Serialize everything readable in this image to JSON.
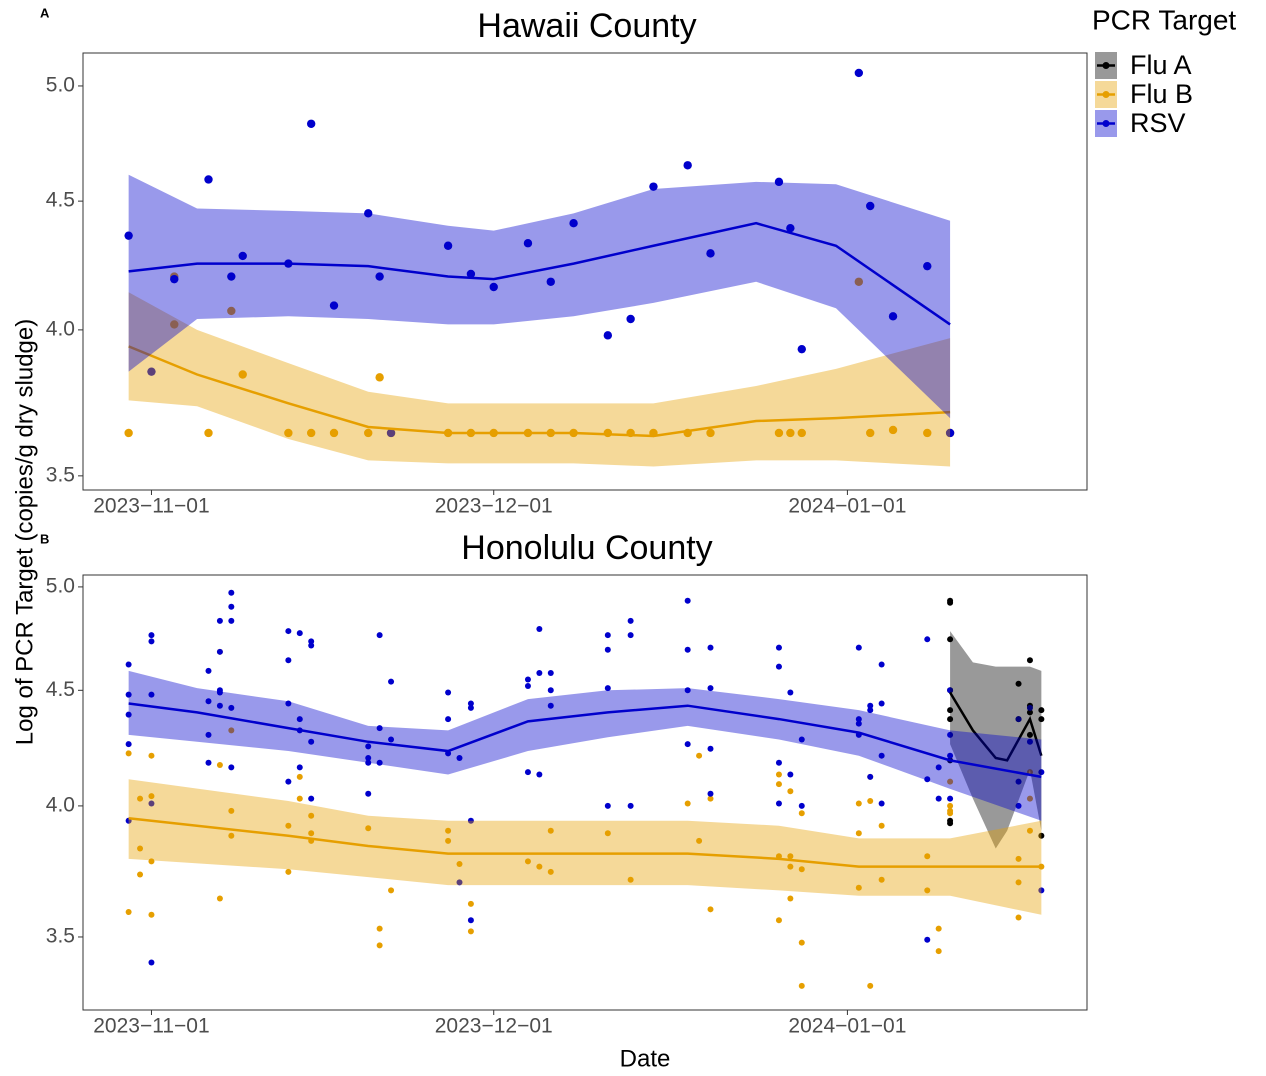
{
  "x_label": "Date",
  "y_label": "Log of PCR Target (copies/g dry sludge)",
  "legend": {
    "title": "PCR Target",
    "position": "right"
  },
  "chart_data": [
    {
      "type": "scatter",
      "tag": "A",
      "title": "Hawaii County",
      "ylog": true,
      "xlim": [
        "2023-10-26",
        "2024-01-22"
      ],
      "xticks": [
        {
          "value": "2023-11-01",
          "label": "2023−11−01"
        },
        {
          "value": "2023-12-01",
          "label": "2023−12−01"
        },
        {
          "value": "2024-01-01",
          "label": "2024−01−01"
        }
      ],
      "ylim": [
        3.455,
        5.153
      ],
      "yticks": [
        3.5,
        {
          "value": 4,
          "label": "4.0"
        },
        4.5,
        {
          "value": 5,
          "label": "5.0"
        }
      ],
      "series": [
        {
          "name": "Flu B",
          "color": "#E69F00",
          "x": [
            "2023-10-30",
            "2023-11-03",
            "2023-11-03",
            "2023-11-06",
            "2023-11-08",
            "2023-11-09",
            "2023-11-13",
            "2023-11-15",
            "2023-11-17",
            "2023-11-20",
            "2023-11-21",
            "2023-11-22",
            "2023-11-27",
            "2023-11-29",
            "2023-12-01",
            "2023-12-04",
            "2023-12-06",
            "2023-12-08",
            "2023-12-11",
            "2023-12-13",
            "2023-12-15",
            "2023-12-18",
            "2023-12-20",
            "2023-12-26",
            "2023-12-27",
            "2023-12-28",
            "2024-01-02",
            "2024-01-03",
            "2024-01-05",
            "2024-01-08",
            "2024-01-10"
          ],
          "values": [
            3.64,
            4.2,
            4.02,
            3.64,
            4.07,
            3.84,
            3.64,
            3.64,
            3.64,
            3.64,
            3.83,
            3.64,
            3.64,
            3.64,
            3.64,
            3.64,
            3.64,
            3.64,
            3.64,
            3.64,
            3.64,
            3.64,
            3.64,
            3.64,
            3.64,
            3.64,
            4.18,
            3.64,
            3.65,
            3.64,
            3.64
          ],
          "fit": {
            "x": [
              "2023-10-30",
              "2023-11-05",
              "2023-11-13",
              "2023-11-20",
              "2023-11-27",
              "2023-12-08",
              "2023-12-15",
              "2023-12-24",
              "2023-12-31",
              "2024-01-10"
            ],
            "values": [
              3.94,
              3.84,
              3.74,
              3.66,
              3.64,
              3.64,
              3.63,
              3.68,
              3.69,
              3.71
            ],
            "upper": [
              4.14,
              4.0,
              3.88,
              3.78,
              3.74,
              3.74,
              3.74,
              3.8,
              3.86,
              3.97
            ],
            "lower": [
              3.75,
              3.73,
              3.62,
              3.55,
              3.54,
              3.54,
              3.53,
              3.55,
              3.55,
              3.53
            ]
          }
        },
        {
          "name": "RSV",
          "color": "#0000CC",
          "x": [
            "2023-10-30",
            "2023-11-01",
            "2023-11-03",
            "2023-11-06",
            "2023-11-08",
            "2023-11-09",
            "2023-11-13",
            "2023-11-15",
            "2023-11-17",
            "2023-11-20",
            "2023-11-21",
            "2023-11-22",
            "2023-11-27",
            "2023-11-29",
            "2023-12-01",
            "2023-12-04",
            "2023-12-06",
            "2023-12-08",
            "2023-12-11",
            "2023-12-13",
            "2023-12-15",
            "2023-12-18",
            "2023-12-20",
            "2023-12-26",
            "2023-12-27",
            "2023-12-28",
            "2024-01-02",
            "2024-01-03",
            "2024-01-05",
            "2024-01-08",
            "2024-01-10"
          ],
          "values": [
            4.36,
            3.85,
            4.19,
            4.59,
            4.2,
            4.28,
            4.25,
            4.83,
            4.09,
            4.45,
            4.2,
            3.64,
            4.32,
            4.21,
            4.16,
            4.33,
            4.18,
            4.41,
            3.98,
            4.04,
            4.56,
            4.65,
            4.29,
            4.58,
            4.39,
            3.93,
            5.06,
            4.48,
            4.05,
            4.24,
            3.64
          ],
          "fit": {
            "x": [
              "2023-10-30",
              "2023-11-05",
              "2023-11-13",
              "2023-11-20",
              "2023-11-27",
              "2023-12-01",
              "2023-12-08",
              "2023-12-15",
              "2023-12-24",
              "2023-12-31",
              "2024-01-10"
            ],
            "values": [
              4.22,
              4.25,
              4.25,
              4.24,
              4.2,
              4.19,
              4.25,
              4.32,
              4.41,
              4.32,
              4.02
            ],
            "upper": [
              4.61,
              4.47,
              4.46,
              4.45,
              4.4,
              4.38,
              4.45,
              4.55,
              4.58,
              4.57,
              4.42
            ],
            "lower": [
              3.85,
              4.04,
              4.05,
              4.04,
              4.02,
              4.02,
              4.05,
              4.1,
              4.18,
              4.08,
              3.69
            ]
          }
        }
      ]
    },
    {
      "type": "scatter",
      "tag": "B",
      "title": "Honolulu County",
      "ylog": true,
      "xlim": [
        "2023-10-26",
        "2024-01-22"
      ],
      "xticks": [
        {
          "value": "2023-11-01",
          "label": "2023−11−01"
        },
        {
          "value": "2023-12-01",
          "label": "2023−12−01"
        },
        {
          "value": "2024-01-01",
          "label": "2024−01−01"
        }
      ],
      "ylim": [
        3.249,
        5.061
      ],
      "yticks": [
        3.5,
        {
          "value": 4,
          "label": "4.0"
        },
        4.5,
        {
          "value": 5,
          "label": "5.0"
        }
      ],
      "series": [
        {
          "name": "Flu A",
          "color": "#000000",
          "x": [
            "2024-01-10",
            "2024-01-10",
            "2024-01-10",
            "2024-01-10",
            "2024-01-10",
            "2024-01-10",
            "2024-01-10",
            "2024-01-10",
            "2024-01-10",
            "2024-01-16",
            "2024-01-16",
            "2024-01-17",
            "2024-01-17",
            "2024-01-17",
            "2024-01-17",
            "2024-01-18",
            "2024-01-18",
            "2024-01-18"
          ],
          "values": [
            4.93,
            4.92,
            4.74,
            4.5,
            4.41,
            4.37,
            4.19,
            3.94,
            3.93,
            4.53,
            4.37,
            4.64,
            4.43,
            4.4,
            4.3,
            4.41,
            4.37,
            3.88
          ],
          "fit": {
            "x": [
              "2024-01-10",
              "2024-01-12",
              "2024-01-14",
              "2024-01-15",
              "2024-01-17",
              "2024-01-18"
            ],
            "values": [
              4.49,
              4.32,
              4.2,
              4.19,
              4.37,
              4.21
            ],
            "upper": [
              4.78,
              4.63,
              4.61,
              4.61,
              4.61,
              4.59
            ],
            "lower": [
              4.26,
              4.03,
              3.83,
              3.9,
              4.15,
              3.9
            ]
          }
        },
        {
          "name": "Flu B",
          "color": "#E69F00",
          "x": [
            "2023-10-30",
            "2023-10-30",
            "2023-10-31",
            "2023-10-31",
            "2023-10-31",
            "2023-11-01",
            "2023-11-01",
            "2023-11-01",
            "2023-11-01",
            "2023-11-07",
            "2023-11-07",
            "2023-11-07",
            "2023-11-08",
            "2023-11-08",
            "2023-11-08",
            "2023-11-13",
            "2023-11-13",
            "2023-11-14",
            "2023-11-14",
            "2023-11-15",
            "2023-11-15",
            "2023-11-15",
            "2023-11-20",
            "2023-11-21",
            "2023-11-21",
            "2023-11-22",
            "2023-11-27",
            "2023-11-27",
            "2023-11-28",
            "2023-11-29",
            "2023-11-29",
            "2023-12-04",
            "2023-12-05",
            "2023-12-06",
            "2023-12-06",
            "2023-12-11",
            "2023-12-13",
            "2023-12-18",
            "2023-12-19",
            "2023-12-19",
            "2023-12-20",
            "2023-12-20",
            "2023-12-26",
            "2023-12-26",
            "2023-12-26",
            "2023-12-26",
            "2023-12-27",
            "2023-12-27",
            "2023-12-27",
            "2023-12-27",
            "2023-12-28",
            "2023-12-28",
            "2023-12-28",
            "2023-12-28",
            "2024-01-02",
            "2024-01-02",
            "2024-01-02",
            "2024-01-03",
            "2024-01-03",
            "2024-01-03",
            "2024-01-04",
            "2024-01-04",
            "2024-01-08",
            "2024-01-08",
            "2024-01-09",
            "2024-01-09",
            "2024-01-10",
            "2024-01-10",
            "2024-01-10",
            "2024-01-10",
            "2024-01-16",
            "2024-01-16",
            "2024-01-16",
            "2024-01-17",
            "2024-01-17",
            "2024-01-17",
            "2024-01-18"
          ],
          "values": [
            4.22,
            3.59,
            4.03,
            3.83,
            3.73,
            4.21,
            4.04,
            3.78,
            3.58,
            4.68,
            4.17,
            3.64,
            4.32,
            3.98,
            3.88,
            3.92,
            3.74,
            4.12,
            4.03,
            3.96,
            3.89,
            3.86,
            3.91,
            3.53,
            3.47,
            3.67,
            3.9,
            3.86,
            3.77,
            3.62,
            3.52,
            3.78,
            3.76,
            3.9,
            3.74,
            3.89,
            3.71,
            4.01,
            4.21,
            3.86,
            4.03,
            3.6,
            4.13,
            4.09,
            3.8,
            3.56,
            4.06,
            3.8,
            3.76,
            3.64,
            3.97,
            3.75,
            3.48,
            3.33,
            4.01,
            3.89,
            3.68,
            4.12,
            4.02,
            3.33,
            3.92,
            3.71,
            3.8,
            3.67,
            3.53,
            3.45,
            4.1,
            4.0,
            3.98,
            3.97,
            3.79,
            3.7,
            3.57,
            4.14,
            4.03,
            3.9,
            3.76
          ],
          "fit": {
            "x": [
              "2023-10-30",
              "2023-11-13",
              "2023-11-20",
              "2023-11-27",
              "2023-12-06",
              "2023-12-18",
              "2023-12-26",
              "2024-01-02",
              "2024-01-10",
              "2024-01-18"
            ],
            "values": [
              3.95,
              3.88,
              3.84,
              3.81,
              3.81,
              3.81,
              3.79,
              3.76,
              3.76,
              3.76
            ],
            "upper": [
              4.11,
              4.02,
              3.96,
              3.94,
              3.94,
              3.94,
              3.92,
              3.87,
              3.87,
              3.94
            ],
            "lower": [
              3.79,
              3.75,
              3.72,
              3.69,
              3.69,
              3.69,
              3.67,
              3.65,
              3.65,
              3.58
            ]
          }
        },
        {
          "name": "RSV",
          "color": "#0000CC",
          "x": [
            "2023-10-30",
            "2023-10-30",
            "2023-10-30",
            "2023-10-30",
            "2023-10-30",
            "2023-11-01",
            "2023-11-01",
            "2023-11-01",
            "2023-11-01",
            "2023-11-01",
            "2023-11-06",
            "2023-11-06",
            "2023-11-06",
            "2023-11-06",
            "2023-11-07",
            "2023-11-07",
            "2023-11-07",
            "2023-11-07",
            "2023-11-07",
            "2023-11-08",
            "2023-11-08",
            "2023-11-08",
            "2023-11-08",
            "2023-11-08",
            "2023-11-13",
            "2023-11-13",
            "2023-11-13",
            "2023-11-13",
            "2023-11-14",
            "2023-11-14",
            "2023-11-14",
            "2023-11-14",
            "2023-11-15",
            "2023-11-15",
            "2023-11-15",
            "2023-11-15",
            "2023-11-20",
            "2023-11-20",
            "2023-11-20",
            "2023-11-20",
            "2023-11-21",
            "2023-11-21",
            "2023-11-21",
            "2023-11-22",
            "2023-11-22",
            "2023-11-27",
            "2023-11-27",
            "2023-11-27",
            "2023-11-28",
            "2023-11-28",
            "2023-11-29",
            "2023-11-29",
            "2023-11-29",
            "2023-11-29",
            "2023-12-04",
            "2023-12-04",
            "2023-12-04",
            "2023-12-05",
            "2023-12-05",
            "2023-12-05",
            "2023-12-06",
            "2023-12-06",
            "2023-12-06",
            "2023-12-11",
            "2023-12-11",
            "2023-12-11",
            "2023-12-11",
            "2023-12-13",
            "2023-12-13",
            "2023-12-13",
            "2023-12-18",
            "2023-12-18",
            "2023-12-18",
            "2023-12-18",
            "2023-12-20",
            "2023-12-20",
            "2023-12-20",
            "2023-12-20",
            "2023-12-26",
            "2023-12-26",
            "2023-12-26",
            "2023-12-26",
            "2023-12-27",
            "2023-12-27",
            "2023-12-28",
            "2023-12-28",
            "2024-01-02",
            "2024-01-02",
            "2024-01-02",
            "2024-01-02",
            "2024-01-03",
            "2024-01-03",
            "2024-01-03",
            "2024-01-04",
            "2024-01-04",
            "2024-01-04",
            "2024-01-04",
            "2024-01-08",
            "2024-01-08",
            "2024-01-08",
            "2024-01-09",
            "2024-01-09",
            "2024-01-10",
            "2024-01-10",
            "2024-01-10",
            "2024-01-10",
            "2024-01-16",
            "2024-01-16",
            "2024-01-16",
            "2024-01-17",
            "2024-01-17",
            "2024-01-18",
            "2024-01-18"
          ],
          "values": [
            4.62,
            4.48,
            4.39,
            4.26,
            3.94,
            4.76,
            4.73,
            4.48,
            4.01,
            3.41,
            4.59,
            4.45,
            4.3,
            4.18,
            4.83,
            4.68,
            4.5,
            4.49,
            4.43,
            4.97,
            4.9,
            4.83,
            4.42,
            4.16,
            4.78,
            4.64,
            4.44,
            4.1,
            4.77,
            4.37,
            4.32,
            4.16,
            4.73,
            4.71,
            4.27,
            4.03,
            4.25,
            4.2,
            4.18,
            4.05,
            4.76,
            4.33,
            4.18,
            4.54,
            4.28,
            4.49,
            4.37,
            4.22,
            4.2,
            3.7,
            4.44,
            4.42,
            3.94,
            3.56,
            4.55,
            4.52,
            4.14,
            4.79,
            4.58,
            4.13,
            4.58,
            4.5,
            4.43,
            4.76,
            4.69,
            4.51,
            4.0,
            4.83,
            4.76,
            4.0,
            4.93,
            4.69,
            4.5,
            4.26,
            4.7,
            4.51,
            4.24,
            4.05,
            4.7,
            4.61,
            4.18,
            4.01,
            4.49,
            4.13,
            4.28,
            4.0,
            4.7,
            4.37,
            4.35,
            4.3,
            4.43,
            4.41,
            4.12,
            4.62,
            4.44,
            4.21,
            4.01,
            4.74,
            4.11,
            3.49,
            4.16,
            4.03,
            4.5,
            4.3,
            4.21,
            4.03,
            4.37,
            4.1,
            4.0,
            4.42,
            4.27,
            4.14,
            3.67
          ],
          "fit": {
            "x": [
              "2023-10-30",
              "2023-11-05",
              "2023-11-13",
              "2023-11-20",
              "2023-11-27",
              "2023-12-04",
              "2023-12-11",
              "2023-12-18",
              "2023-12-26",
              "2024-01-02",
              "2024-01-10",
              "2024-01-18"
            ],
            "values": [
              4.44,
              4.4,
              4.33,
              4.27,
              4.23,
              4.36,
              4.4,
              4.43,
              4.37,
              4.31,
              4.19,
              4.12
            ],
            "upper": [
              4.59,
              4.51,
              4.45,
              4.34,
              4.32,
              4.46,
              4.5,
              4.51,
              4.46,
              4.41,
              4.32,
              4.28
            ],
            "lower": [
              4.3,
              4.27,
              4.23,
              4.18,
              4.13,
              4.23,
              4.29,
              4.34,
              4.28,
              4.21,
              4.07,
              3.94
            ]
          }
        }
      ]
    }
  ]
}
